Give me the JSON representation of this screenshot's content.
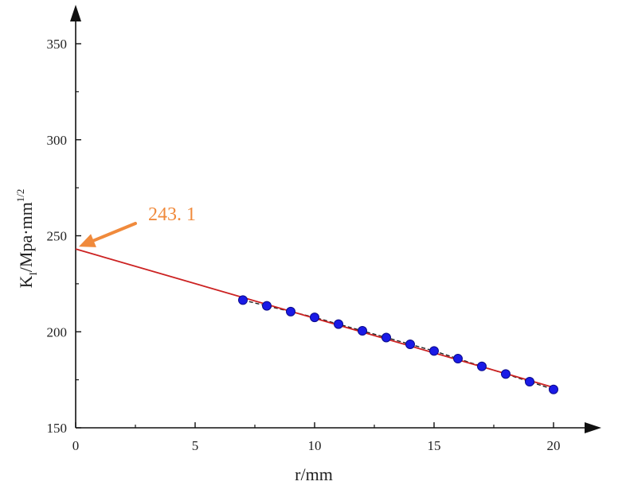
{
  "chart_data": {
    "type": "scatter",
    "xlabel": "r/mm",
    "ylabel": {
      "main": "K",
      "sub": "I",
      "rest": "/Mpa·mm",
      "sup": "1/2"
    },
    "xlim": [
      0,
      20
    ],
    "ylim": [
      150,
      350
    ],
    "xticks": [
      "0",
      "5",
      "10",
      "15",
      "20"
    ],
    "yticks": [
      "150",
      "200",
      "250",
      "300",
      "350"
    ],
    "grid": false,
    "series": [
      {
        "marker": "circle",
        "color": "#1a1ae6",
        "x": [
          7,
          8,
          9,
          10,
          11,
          12,
          13,
          14,
          15,
          16,
          17,
          18,
          19,
          20
        ],
        "y": [
          216.5,
          213.5,
          210.5,
          207.5,
          204,
          200.5,
          197,
          193.5,
          190,
          186,
          182,
          178,
          174,
          170
        ]
      }
    ],
    "fit_line": {
      "color": "#cc2222",
      "x": [
        0,
        20
      ],
      "y": [
        243.1,
        171
      ]
    },
    "annotation": {
      "text": "243. 1",
      "color": "#f08a3c",
      "target_x": 0,
      "target_y": 243.1
    }
  }
}
